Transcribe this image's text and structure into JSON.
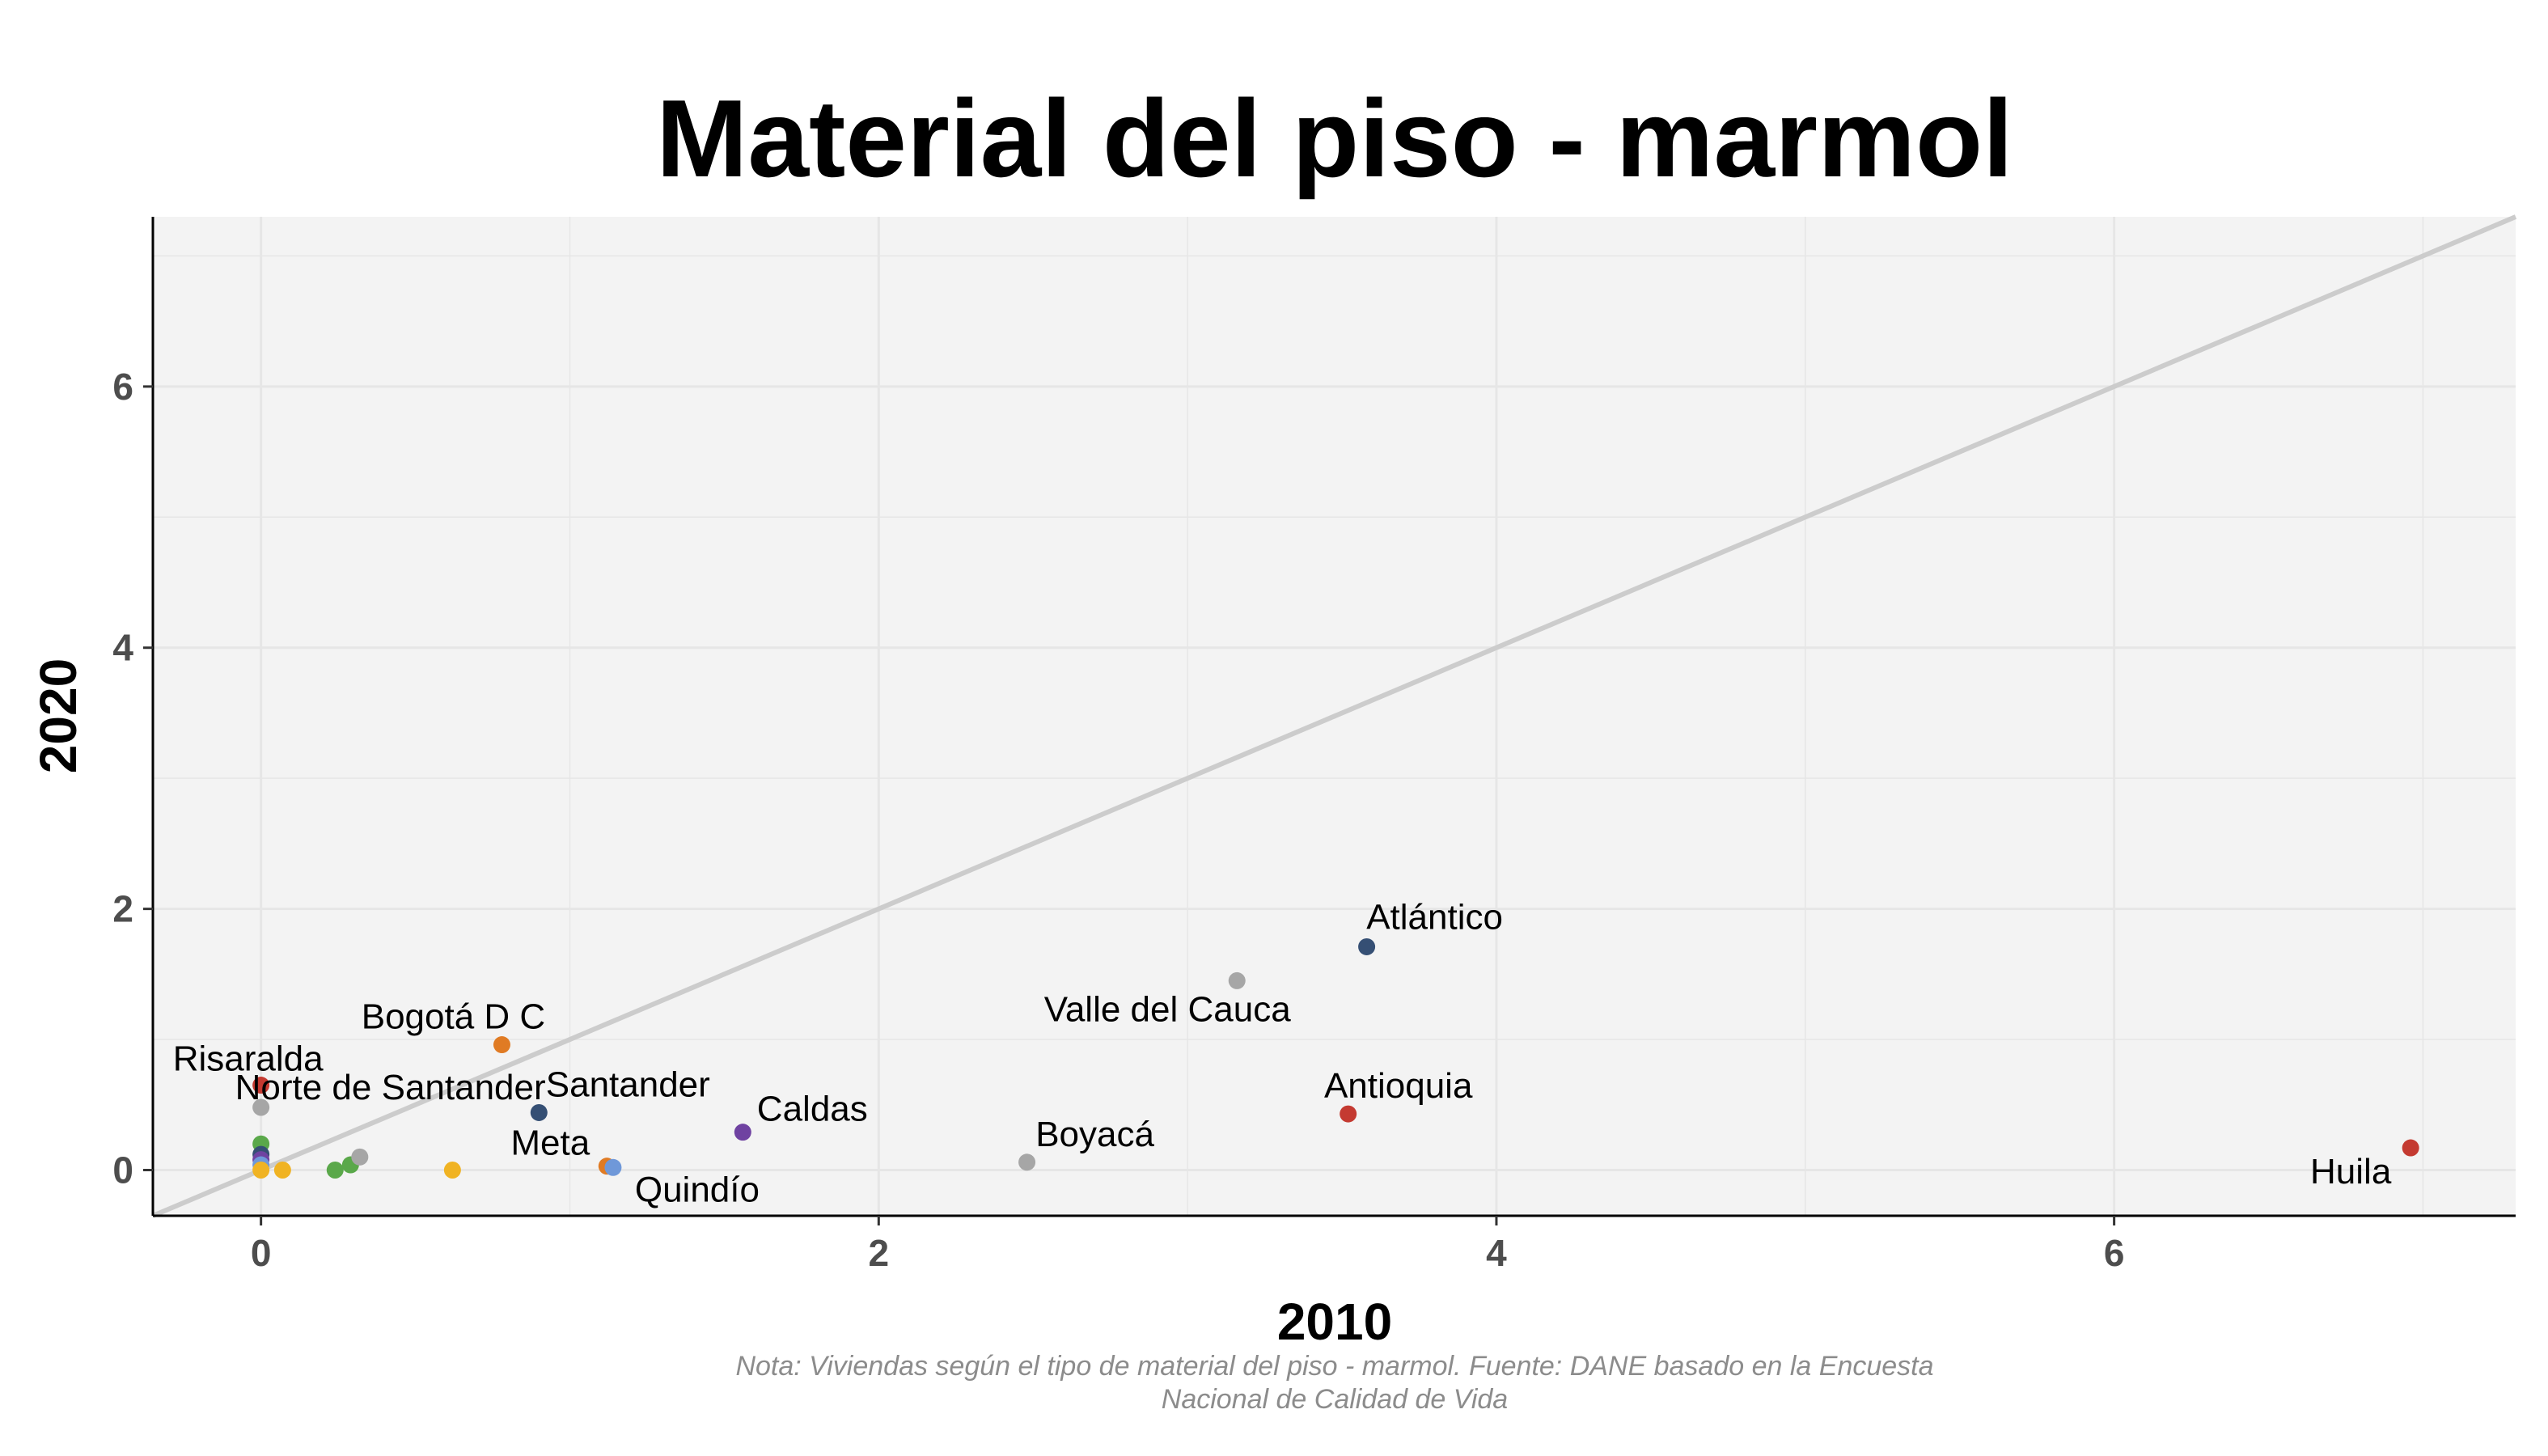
{
  "chart_data": {
    "type": "scatter",
    "title": "Material del piso - marmol",
    "xlabel": "2010",
    "ylabel": "2020",
    "xlim": [
      -0.35,
      7.3
    ],
    "ylim": [
      -0.35,
      7.3
    ],
    "x_ticks": [
      0,
      2,
      4,
      6
    ],
    "y_ticks": [
      0,
      2,
      4,
      6
    ],
    "x_tick_labels": [
      "0",
      "2",
      "4",
      "6"
    ],
    "y_tick_labels": [
      "0",
      "2",
      "4",
      "6"
    ],
    "grid": true,
    "reference_line": "y = x",
    "caption": [
      "Nota: Viviendas según el tipo de material del piso - marmol. Fuente: DANE basado en la Encuesta",
      "Nacional de Calidad de Vida"
    ],
    "colors": {
      "panel_background": "#f3f3f3",
      "grid": "#e6e6e6",
      "reference_line": "#cccccc",
      "axis": "#000000"
    },
    "points": [
      {
        "x": 6.96,
        "y": 0.17,
        "label": "Huila",
        "color": "#c43a31"
      },
      {
        "x": 3.58,
        "y": 1.71,
        "label": "Atlántico",
        "color": "#354f74"
      },
      {
        "x": 3.52,
        "y": 0.43,
        "label": "Antioquia",
        "color": "#c43a31"
      },
      {
        "x": 3.16,
        "y": 1.45,
        "label": "Valle del Cauca",
        "color": "#a6a6a6"
      },
      {
        "x": 2.48,
        "y": 0.06,
        "label": "Boyacá",
        "color": "#a6a6a6"
      },
      {
        "x": 1.56,
        "y": 0.29,
        "label": "Caldas",
        "color": "#6f42a1"
      },
      {
        "x": 0.9,
        "y": 0.44,
        "label": "Santander",
        "color": "#354f74"
      },
      {
        "x": 0.78,
        "y": 0.96,
        "label": "Bogotá D C",
        "color": "#e07b24"
      },
      {
        "x": 1.12,
        "y": 0.03,
        "label": "Meta",
        "color": "#e07b24"
      },
      {
        "x": 1.14,
        "y": 0.02,
        "label": "Quindío",
        "color": "#6f98d9"
      },
      {
        "x": 0.0,
        "y": 0.65,
        "label": "Risaralda",
        "color": "#c43a31"
      },
      {
        "x": 0.0,
        "y": 0.48,
        "label": "Norte de Santander",
        "color": "#a6a6a6"
      },
      {
        "x": 0.0,
        "y": 0.2,
        "label": "",
        "color": "#5aa84a"
      },
      {
        "x": 0.0,
        "y": 0.12,
        "label": "",
        "color": "#354f74"
      },
      {
        "x": 0.0,
        "y": 0.08,
        "label": "",
        "color": "#6f42a1"
      },
      {
        "x": 0.0,
        "y": 0.04,
        "label": "",
        "color": "#6f98d9"
      },
      {
        "x": 0.0,
        "y": 0.0,
        "label": "",
        "color": "#f0b323"
      },
      {
        "x": 0.07,
        "y": 0.0,
        "label": "",
        "color": "#f0b323"
      },
      {
        "x": 0.24,
        "y": 0.0,
        "label": "",
        "color": "#5aa84a"
      },
      {
        "x": 0.29,
        "y": 0.04,
        "label": "",
        "color": "#5aa84a"
      },
      {
        "x": 0.32,
        "y": 0.1,
        "label": "",
        "color": "#a6a6a6"
      },
      {
        "x": 0.62,
        "y": 0.0,
        "label": "",
        "color": "#f0b323"
      }
    ]
  }
}
